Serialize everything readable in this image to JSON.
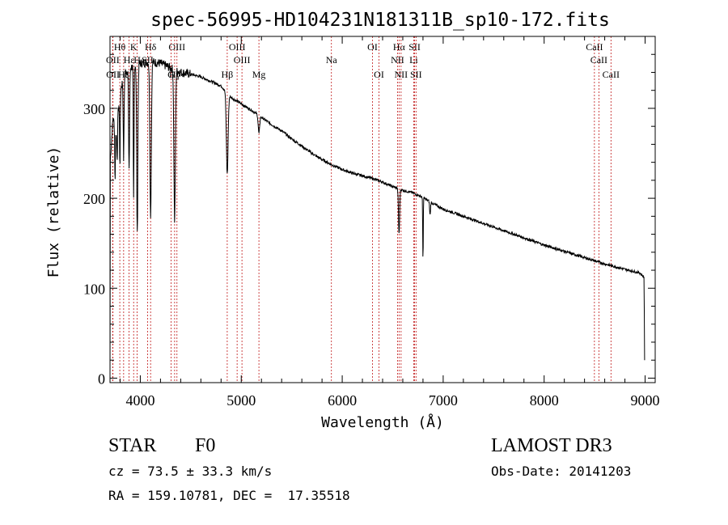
{
  "chart_data": {
    "type": "line",
    "title": "spec-56995-HD104231N181311B_sp10-172.fits",
    "xlabel": "Wavelength (Å)",
    "ylabel": "Flux (relative)",
    "xlim": [
      3700,
      9100
    ],
    "ylim": [
      -5,
      380
    ],
    "x_ticks": [
      4000,
      5000,
      6000,
      7000,
      8000,
      9000
    ],
    "y_ticks": [
      0,
      100,
      200,
      300
    ],
    "continuum": [
      [
        3700,
        5
      ],
      [
        3702,
        240
      ],
      [
        3730,
        290
      ],
      [
        3760,
        270
      ],
      [
        3800,
        320
      ],
      [
        3850,
        340
      ],
      [
        3900,
        345
      ],
      [
        3950,
        348
      ],
      [
        4000,
        350
      ],
      [
        4100,
        352
      ],
      [
        4200,
        350
      ],
      [
        4300,
        345
      ],
      [
        4400,
        340
      ],
      [
        4500,
        338
      ],
      [
        4600,
        335
      ],
      [
        4700,
        330
      ],
      [
        4800,
        325
      ],
      [
        4900,
        312
      ],
      [
        5000,
        305
      ],
      [
        5100,
        298
      ],
      [
        5200,
        290
      ],
      [
        5300,
        282
      ],
      [
        5400,
        275
      ],
      [
        5500,
        266
      ],
      [
        5600,
        258
      ],
      [
        5700,
        250
      ],
      [
        5800,
        243
      ],
      [
        5900,
        237
      ],
      [
        6000,
        232
      ],
      [
        6100,
        228
      ],
      [
        6200,
        225
      ],
      [
        6300,
        222
      ],
      [
        6400,
        218
      ],
      [
        6500,
        213
      ],
      [
        6600,
        209
      ],
      [
        6700,
        206
      ],
      [
        6800,
        201
      ],
      [
        6900,
        194
      ],
      [
        7000,
        188
      ],
      [
        7200,
        180
      ],
      [
        7400,
        172
      ],
      [
        7600,
        164
      ],
      [
        7800,
        156
      ],
      [
        8000,
        148
      ],
      [
        8200,
        141
      ],
      [
        8400,
        134
      ],
      [
        8600,
        127
      ],
      [
        8800,
        121
      ],
      [
        8950,
        117
      ],
      [
        8990,
        112
      ],
      [
        8995,
        20
      ]
    ],
    "absorption_lines": [
      [
        3750,
        60,
        4
      ],
      [
        3771,
        50,
        4
      ],
      [
        3798,
        80,
        5
      ],
      [
        3835,
        90,
        6
      ],
      [
        3889,
        110,
        7
      ],
      [
        3934,
        150,
        5
      ],
      [
        3970,
        190,
        8
      ],
      [
        4102,
        170,
        10
      ],
      [
        4340,
        170,
        10
      ],
      [
        4861,
        90,
        12
      ],
      [
        5175,
        20,
        10
      ],
      [
        6563,
        50,
        8
      ],
      [
        6870,
        15,
        6
      ],
      [
        6800,
        70,
        4
      ]
    ],
    "line_markers": [
      {
        "label": "Hθ",
        "wl": 3797,
        "row": 1
      },
      {
        "label": "K",
        "wl": 3934,
        "row": 1
      },
      {
        "label": "Hδ",
        "wl": 4102,
        "row": 1
      },
      {
        "label": "OIII",
        "wl": 4363,
        "row": 1
      },
      {
        "label": "OIII",
        "wl": 4959,
        "row": 1
      },
      {
        "label": "OI",
        "wl": 6300,
        "row": 1
      },
      {
        "label": "Hα",
        "wl": 6563,
        "row": 1
      },
      {
        "label": "SII",
        "wl": 6717,
        "row": 1
      },
      {
        "label": "CaII",
        "wl": 8498,
        "row": 1
      },
      {
        "label": "OII",
        "wl": 3727,
        "row": 2
      },
      {
        "label": "Hε",
        "wl": 3889,
        "row": 2
      },
      {
        "label": "H",
        "wl": 3969,
        "row": 2
      },
      {
        "label": "SII",
        "wl": 4072,
        "row": 2
      },
      {
        "label": "OIII",
        "wl": 5007,
        "row": 2
      },
      {
        "label": "Na",
        "wl": 5893,
        "row": 2
      },
      {
        "label": "NII",
        "wl": 6548,
        "row": 2
      },
      {
        "label": "Li",
        "wl": 6708,
        "row": 2
      },
      {
        "label": "CaII",
        "wl": 8542,
        "row": 2
      },
      {
        "label": "OII",
        "wl": 3729,
        "row": 3
      },
      {
        "label": "Hζ",
        "wl": 3835,
        "row": 3
      },
      {
        "label": "Hγ",
        "wl": 4340,
        "row": 3
      },
      {
        "label": "G",
        "wl": 4305,
        "row": 3
      },
      {
        "label": "Hβ",
        "wl": 4861,
        "row": 3
      },
      {
        "label": "Mg",
        "wl": 5175,
        "row": 3
      },
      {
        "label": "OI",
        "wl": 6364,
        "row": 3
      },
      {
        "label": "NII",
        "wl": 6583,
        "row": 3
      },
      {
        "label": "SII",
        "wl": 6731,
        "row": 3
      },
      {
        "label": "CaII",
        "wl": 8662,
        "row": 3
      }
    ],
    "line_color": "#000000",
    "marker_color": "#c01818"
  },
  "info": {
    "object_class": "STAR",
    "subclass": "F0",
    "survey": "LAMOST DR3",
    "redshift": "cz = 73.5 ± 33.3 km/s",
    "obs_date": "Obs-Date: 20141203",
    "coords": "RA = 159.10781, DEC =  17.35518"
  }
}
